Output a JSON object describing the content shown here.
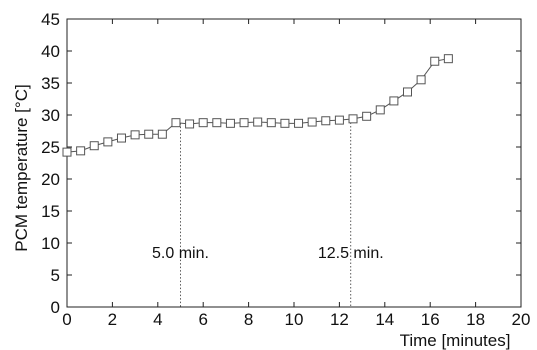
{
  "chart_data": {
    "type": "line",
    "title": "",
    "xlabel": "Time [minutes]",
    "ylabel": "PCM temperature [°C]",
    "xlim": [
      0,
      20
    ],
    "ylim": [
      0,
      45
    ],
    "x_ticks": [
      0,
      2,
      4,
      6,
      8,
      10,
      12,
      14,
      16,
      18,
      20
    ],
    "y_ticks": [
      0,
      5,
      10,
      15,
      20,
      25,
      30,
      35,
      40,
      45
    ],
    "grid": false,
    "legend": "none",
    "marker": "square",
    "series": [
      {
        "x": [
          0.0,
          0.6,
          1.2,
          1.8,
          2.4,
          3.0,
          3.6,
          4.2,
          4.8,
          5.4,
          6.0,
          6.6,
          7.2,
          7.8,
          8.4,
          9.0,
          9.6,
          10.2,
          10.8,
          11.4,
          12.0,
          12.6,
          13.2,
          13.8,
          14.4,
          15.0,
          15.6,
          16.2,
          16.8
        ],
        "y": [
          24.2,
          24.4,
          25.2,
          25.8,
          26.4,
          26.9,
          27.0,
          27.0,
          28.8,
          28.6,
          28.8,
          28.8,
          28.7,
          28.8,
          28.9,
          28.8,
          28.7,
          28.7,
          28.9,
          29.1,
          29.2,
          29.4,
          29.8,
          30.8,
          32.2,
          33.6,
          35.5,
          38.4,
          38.8
        ]
      }
    ],
    "annotations": [
      {
        "x": 5.0,
        "text": "5.0 min."
      },
      {
        "x": 12.5,
        "text": "12.5 min."
      }
    ]
  }
}
